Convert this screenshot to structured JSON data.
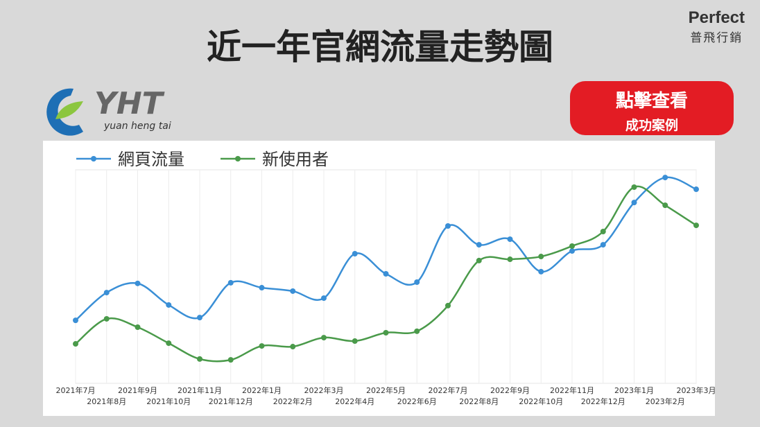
{
  "header": {
    "title": "近一年官網流量走勢圖",
    "brand": "Perfect",
    "brand_sub": "普飛行銷"
  },
  "logo": {
    "mark": "YHT",
    "sub": "yuan heng tai"
  },
  "button": {
    "line1": "點擊查看",
    "line2": "成功案例"
  },
  "chart_data": {
    "type": "line",
    "categories": [
      "2021年7月",
      "2021年8月",
      "2021年9月",
      "2021年10月",
      "2021年11月",
      "2021年12月",
      "2022年1月",
      "2022年2月",
      "2022年3月",
      "2022年4月",
      "2022年5月",
      "2022年6月",
      "2022年7月",
      "2022年8月",
      "2022年9月",
      "2022年10月",
      "2022年11月",
      "2022年12月",
      "2023年1月",
      "2023年2月",
      "2023年3月"
    ],
    "series": [
      {
        "name": "網頁流量",
        "color": "#3a8fd6",
        "values": [
          29.5,
          42.5,
          46.8,
          36.7,
          30.8,
          47.1,
          44.8,
          43.2,
          39.9,
          60.7,
          51.3,
          47.4,
          73.7,
          64.9,
          67.5,
          52.3,
          62.0,
          64.9,
          84.7,
          96.4,
          90.9
        ]
      },
      {
        "name": "新使用者",
        "color": "#4a9a4a",
        "values": [
          18.5,
          30.2,
          26.3,
          18.8,
          11.4,
          11.0,
          17.5,
          17.2,
          21.4,
          19.8,
          23.7,
          24.4,
          36.4,
          57.5,
          58.1,
          59.4,
          64.3,
          71.1,
          91.9,
          83.4,
          74.0
        ]
      }
    ],
    "ylim": [
      0,
      100
    ]
  }
}
